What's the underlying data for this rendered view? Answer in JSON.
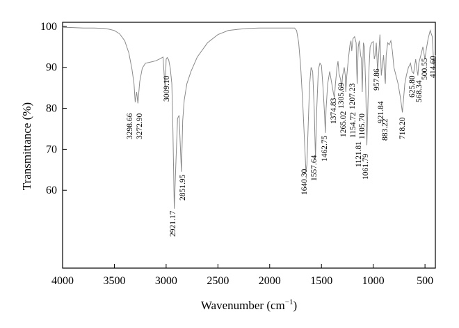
{
  "chart_data": {
    "type": "line",
    "xlabel": "Wavenumber (cm",
    "xlabel_sup": "−1",
    "xlabel_close": ")",
    "ylabel": "Transmittance (%)",
    "xlim": [
      4000,
      400
    ],
    "x_reversed": true,
    "ylim": [
      41,
      101
    ],
    "x_ticks": [
      4000,
      3500,
      3000,
      2500,
      2000,
      1500,
      1000,
      500
    ],
    "y_ticks": [
      60,
      70,
      80,
      90,
      100
    ],
    "line_color": "#8a8a8a",
    "grid": false,
    "legend": "none",
    "series": [
      {
        "x": [
          4000,
          3900,
          3800,
          3700,
          3600,
          3550,
          3500,
          3450,
          3400,
          3360,
          3330,
          3310,
          3298.66,
          3285,
          3272.9,
          3255,
          3230,
          3200,
          3150,
          3100,
          3060,
          3030,
          3009.1,
          3000,
          2990,
          2975,
          2960,
          2945,
          2935,
          2921.17,
          2905,
          2890,
          2875,
          2865,
          2851.95,
          2840,
          2825,
          2800,
          2760,
          2700,
          2600,
          2500,
          2400,
          2300,
          2200,
          2100,
          2000,
          1900,
          1800,
          1760,
          1740,
          1720,
          1700,
          1680,
          1660,
          1650,
          1640.3,
          1630,
          1615,
          1600,
          1585,
          1570,
          1557.64,
          1545,
          1530,
          1515,
          1500,
          1485,
          1470,
          1462.75,
          1455,
          1440,
          1420,
          1400,
          1385,
          1374.83,
          1365,
          1350,
          1340,
          1330,
          1315,
          1305.69,
          1295,
          1280,
          1270,
          1265.02,
          1255,
          1240,
          1225,
          1215,
          1207.23,
          1195,
          1180,
          1165,
          1160,
          1154.72,
          1145,
          1135,
          1121.81,
          1114,
          1105.7,
          1095,
          1085,
          1072,
          1061.79,
          1050,
          1040,
          1030,
          1015,
          1000,
          990,
          980,
          970,
          957.86,
          945,
          935,
          921.84,
          910,
          900,
          890,
          883.22,
          875,
          860,
          845,
          830,
          815,
          800,
          780,
          760,
          740,
          728,
          718.2,
          708,
          695,
          680,
          660,
          640,
          625.8,
          610,
          590,
          575,
          568.34,
          560,
          540,
          520,
          500.55,
          490,
          470,
          450,
          430,
          414.6,
          400
        ],
        "y": [
          99.8,
          99.7,
          99.6,
          99.6,
          99.5,
          99.3,
          99.0,
          98.2,
          96.5,
          93.5,
          89.5,
          86.0,
          81.5,
          84.0,
          81.2,
          86.5,
          89.8,
          91.0,
          91.3,
          91.6,
          92.1,
          92.5,
          84.5,
          92.0,
          92.4,
          91.8,
          89.8,
          86.0,
          75.0,
          55.5,
          67.0,
          77.5,
          78.3,
          72.0,
          64.5,
          77.0,
          82.0,
          86.0,
          89.0,
          92.5,
          96.0,
          98.0,
          99.0,
          99.3,
          99.5,
          99.6,
          99.6,
          99.6,
          99.6,
          99.6,
          99.0,
          96.0,
          90.0,
          81.0,
          70.0,
          64.5,
          66.3,
          74.5,
          85.5,
          90.0,
          89.0,
          80.0,
          67.8,
          80.0,
          89.5,
          91.0,
          90.5,
          85.0,
          78.5,
          74.0,
          80.0,
          86.0,
          89.0,
          86.0,
          83.8,
          82.5,
          86.0,
          90.0,
          91.5,
          88.5,
          87.0,
          85.0,
          88.0,
          90.0,
          88.0,
          84.0,
          88.0,
          92.0,
          95.5,
          96.5,
          94.0,
          97.0,
          97.5,
          96.0,
          90.0,
          86.0,
          95.0,
          96.5,
          93.0,
          92.0,
          84.0,
          96.0,
          95.0,
          85.0,
          71.0,
          82.0,
          90.0,
          95.0,
          96.0,
          96.3,
          92.0,
          93.0,
          96.0,
          89.0,
          94.0,
          98.0,
          88.0,
          91.0,
          93.0,
          88.0,
          86.0,
          93.0,
          96.0,
          95.5,
          96.5,
          94.0,
          90.0,
          88.0,
          86.0,
          83.0,
          80.8,
          79.0,
          82.0,
          86.0,
          88.0,
          90.0,
          91.0,
          89.0,
          88.5,
          92.0,
          89.0,
          88.0,
          91.0,
          93.0,
          95.0,
          92.0,
          94.0,
          97.0,
          99.0,
          97.5,
          90.5,
          93.0
        ]
      }
    ],
    "annotations": [
      {
        "label": "3298.66"
      },
      {
        "label": "3272.90"
      },
      {
        "label": "3009.10"
      },
      {
        "label": "2921.17"
      },
      {
        "label": "2851.95"
      },
      {
        "label": "1640.30"
      },
      {
        "label": "1557.64"
      },
      {
        "label": "1462.75"
      },
      {
        "label": "1374.83"
      },
      {
        "label": "1305.69"
      },
      {
        "label": "1265.02"
      },
      {
        "label": "1207.23"
      },
      {
        "label": "1154.72"
      },
      {
        "label": "1121.81"
      },
      {
        "label": "1105.70"
      },
      {
        "label": "1061.79"
      },
      {
        "label": "957.86"
      },
      {
        "label": "921.84"
      },
      {
        "label": "883.22"
      },
      {
        "label": "718.20"
      },
      {
        "label": "625.80"
      },
      {
        "label": "568.34"
      },
      {
        "label": "500.55"
      },
      {
        "label": "414.60"
      }
    ]
  }
}
